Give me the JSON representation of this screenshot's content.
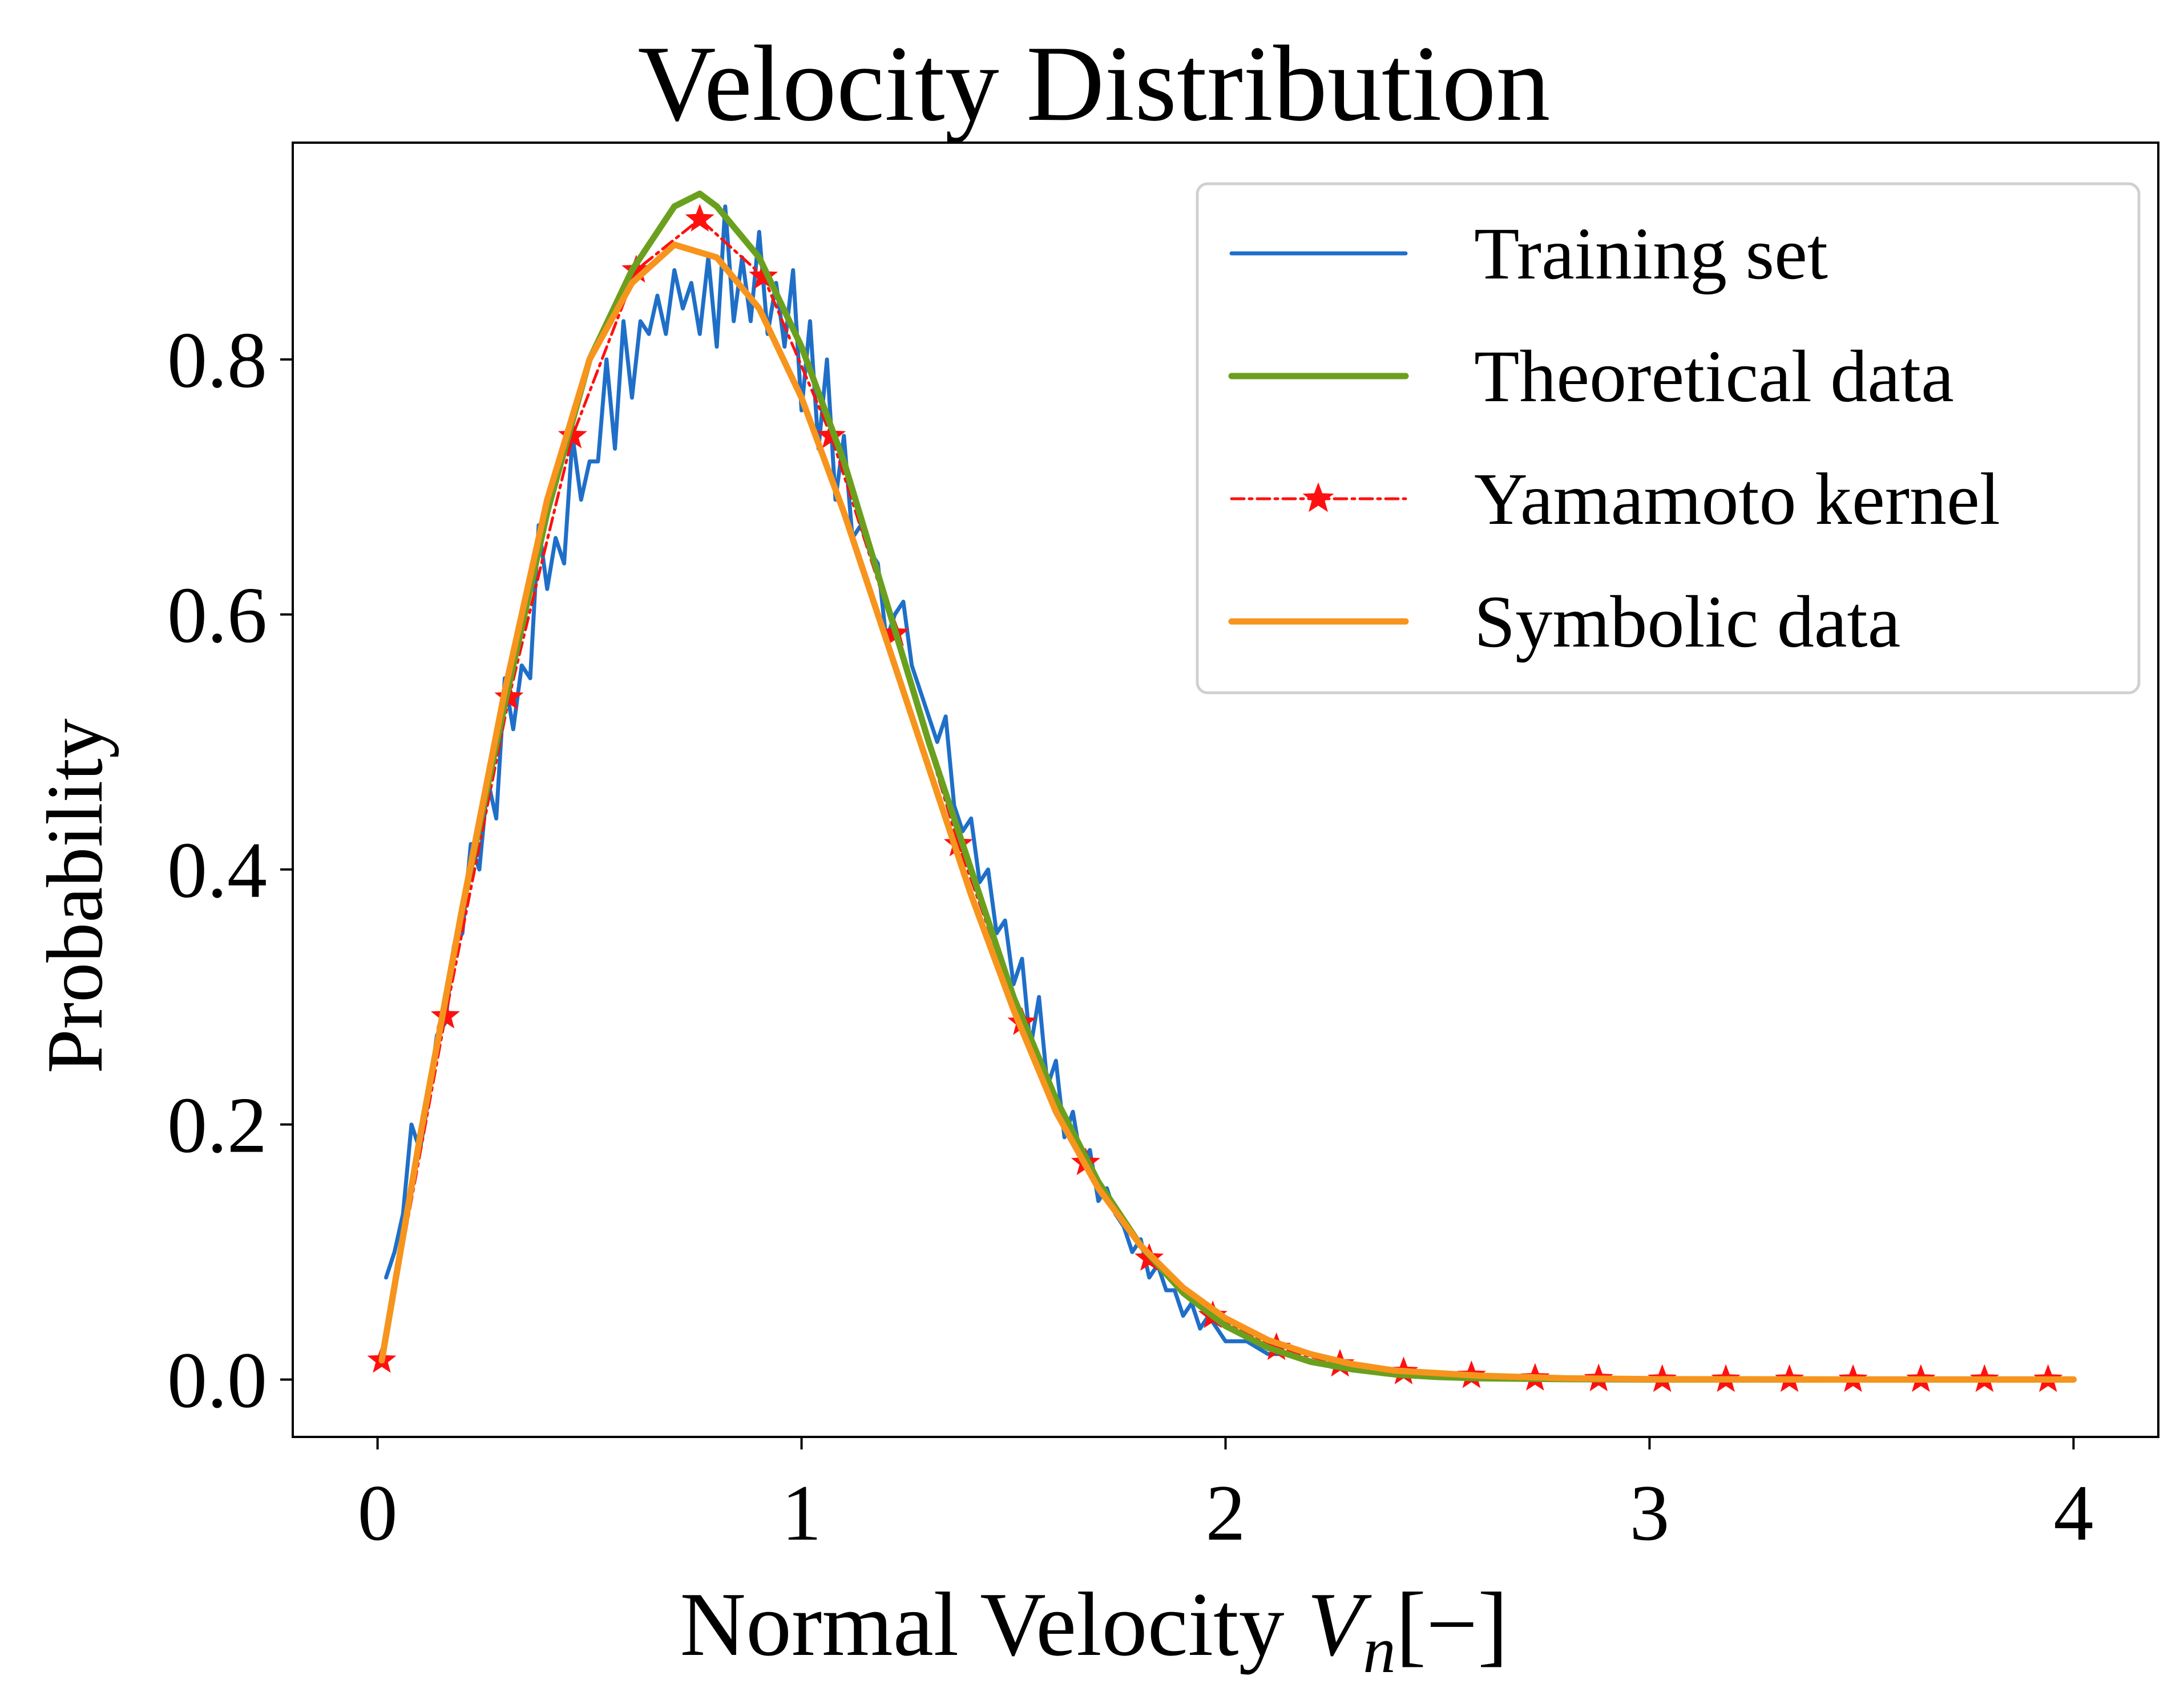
{
  "chart_data": {
    "type": "line",
    "title": "Velocity Distribution",
    "xlabel": "Normal Velocity",
    "xlabel_var": "V",
    "xlabel_sub": "n",
    "xlabel_unit": "[−]",
    "ylabel": "Probability",
    "xlim": [
      -0.2,
      4.2
    ],
    "ylim": [
      -0.045,
      0.97
    ],
    "xticks": [
      0,
      1,
      2,
      3,
      4
    ],
    "xtick_labels": [
      "0",
      "1",
      "2",
      "3",
      "4"
    ],
    "yticks": [
      0.0,
      0.2,
      0.4,
      0.6,
      0.8
    ],
    "ytick_labels": [
      "0.0",
      "0.2",
      "0.4",
      "0.6",
      "0.8"
    ],
    "grid": false,
    "legend_position": "top-right",
    "series": [
      {
        "name": "Training set",
        "color": "#1f6fc8",
        "style": "solid",
        "x": [
          0.02,
          0.04,
          0.06,
          0.08,
          0.1,
          0.12,
          0.14,
          0.16,
          0.18,
          0.2,
          0.22,
          0.24,
          0.26,
          0.28,
          0.3,
          0.32,
          0.34,
          0.36,
          0.38,
          0.4,
          0.42,
          0.44,
          0.46,
          0.48,
          0.5,
          0.52,
          0.54,
          0.56,
          0.58,
          0.6,
          0.62,
          0.64,
          0.66,
          0.68,
          0.7,
          0.72,
          0.74,
          0.76,
          0.78,
          0.8,
          0.82,
          0.84,
          0.86,
          0.88,
          0.9,
          0.92,
          0.94,
          0.96,
          0.98,
          1.0,
          1.02,
          1.04,
          1.06,
          1.08,
          1.1,
          1.12,
          1.14,
          1.16,
          1.18,
          1.2,
          1.22,
          1.24,
          1.26,
          1.28,
          1.3,
          1.32,
          1.34,
          1.36,
          1.38,
          1.4,
          1.42,
          1.44,
          1.46,
          1.48,
          1.5,
          1.52,
          1.54,
          1.56,
          1.58,
          1.6,
          1.62,
          1.64,
          1.66,
          1.68,
          1.7,
          1.72,
          1.74,
          1.76,
          1.78,
          1.8,
          1.82,
          1.84,
          1.86,
          1.88,
          1.9,
          1.92,
          1.94,
          1.96,
          1.98,
          2.0,
          2.05,
          2.1,
          2.15,
          2.2,
          2.25,
          2.3,
          2.35,
          2.4,
          2.45
        ],
        "y": [
          0.08,
          0.1,
          0.13,
          0.2,
          0.18,
          0.22,
          0.27,
          0.28,
          0.34,
          0.35,
          0.42,
          0.4,
          0.47,
          0.44,
          0.55,
          0.51,
          0.56,
          0.55,
          0.67,
          0.62,
          0.66,
          0.64,
          0.74,
          0.69,
          0.72,
          0.72,
          0.8,
          0.73,
          0.83,
          0.77,
          0.83,
          0.82,
          0.85,
          0.82,
          0.87,
          0.84,
          0.86,
          0.82,
          0.88,
          0.81,
          0.92,
          0.83,
          0.88,
          0.83,
          0.9,
          0.82,
          0.86,
          0.81,
          0.87,
          0.76,
          0.83,
          0.73,
          0.8,
          0.69,
          0.74,
          0.66,
          0.67,
          0.65,
          0.64,
          0.58,
          0.6,
          0.61,
          0.56,
          0.54,
          0.52,
          0.5,
          0.52,
          0.45,
          0.43,
          0.44,
          0.39,
          0.4,
          0.35,
          0.36,
          0.31,
          0.33,
          0.26,
          0.3,
          0.23,
          0.25,
          0.19,
          0.21,
          0.17,
          0.18,
          0.14,
          0.15,
          0.13,
          0.12,
          0.1,
          0.11,
          0.08,
          0.09,
          0.07,
          0.07,
          0.05,
          0.06,
          0.04,
          0.05,
          0.04,
          0.03,
          0.03,
          0.02,
          0.02,
          0.015,
          0.01,
          0.008,
          0.006,
          0.005,
          0.003
        ]
      },
      {
        "name": "Theoretical data",
        "color": "#6aa01e",
        "style": "solid",
        "x": [
          0.01,
          0.1,
          0.2,
          0.3,
          0.4,
          0.5,
          0.6,
          0.7,
          0.76,
          0.8,
          0.9,
          1.0,
          1.1,
          1.2,
          1.3,
          1.4,
          1.5,
          1.6,
          1.7,
          1.8,
          1.9,
          2.0,
          2.1,
          2.2,
          2.3,
          2.4,
          2.5,
          2.6,
          2.8,
          3.0,
          3.5,
          4.0
        ],
        "y": [
          0.015,
          0.19,
          0.37,
          0.53,
          0.68,
          0.8,
          0.87,
          0.92,
          0.93,
          0.92,
          0.88,
          0.81,
          0.72,
          0.61,
          0.5,
          0.4,
          0.3,
          0.22,
          0.155,
          0.105,
          0.068,
          0.042,
          0.025,
          0.014,
          0.008,
          0.004,
          0.002,
          0.001,
          0.0003,
          0.0,
          0.0,
          0.0
        ]
      },
      {
        "name": "Yamamoto kernel",
        "color": "#ff1010",
        "style": "dashdot-star",
        "x": [
          0.01,
          0.16,
          0.31,
          0.46,
          0.61,
          0.76,
          0.91,
          1.07,
          1.22,
          1.37,
          1.52,
          1.67,
          1.82,
          1.97,
          2.12,
          2.27,
          2.42,
          2.58,
          2.73,
          2.88,
          3.03,
          3.18,
          3.33,
          3.48,
          3.64,
          3.79,
          3.94
        ],
        "y": [
          0.015,
          0.285,
          0.535,
          0.74,
          0.87,
          0.91,
          0.865,
          0.74,
          0.585,
          0.42,
          0.28,
          0.17,
          0.095,
          0.05,
          0.025,
          0.012,
          0.006,
          0.003,
          0.001,
          0.0005,
          0.0,
          0.0,
          0.0,
          0.0,
          0.0,
          0.0,
          0.0
        ]
      },
      {
        "name": "Symbolic data",
        "color": "#f7941d",
        "style": "solid",
        "x": [
          0.01,
          0.1,
          0.2,
          0.3,
          0.4,
          0.5,
          0.6,
          0.7,
          0.8,
          0.9,
          1.0,
          1.1,
          1.2,
          1.3,
          1.4,
          1.5,
          1.6,
          1.7,
          1.8,
          1.9,
          2.0,
          2.1,
          2.2,
          2.3,
          2.4,
          2.6,
          2.8,
          3.0,
          3.5,
          4.0
        ],
        "y": [
          0.015,
          0.19,
          0.37,
          0.54,
          0.69,
          0.8,
          0.86,
          0.89,
          0.88,
          0.84,
          0.77,
          0.68,
          0.58,
          0.48,
          0.38,
          0.29,
          0.21,
          0.15,
          0.105,
          0.072,
          0.048,
          0.031,
          0.02,
          0.012,
          0.007,
          0.003,
          0.001,
          0.0003,
          0.0,
          0.0
        ]
      }
    ]
  }
}
